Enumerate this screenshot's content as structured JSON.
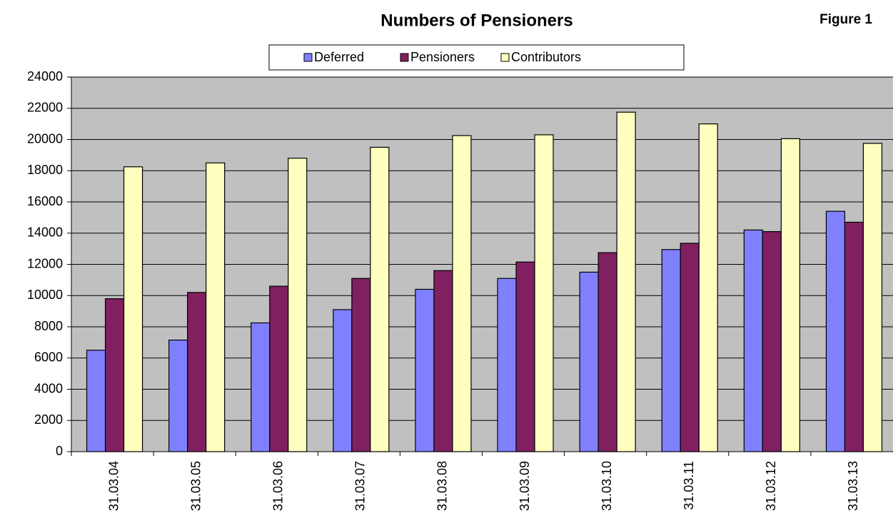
{
  "chart_data": {
    "type": "bar",
    "title": "Numbers of Pensioners",
    "figure_label": "Figure 1",
    "categories": [
      "31.03.04",
      "31.03.05",
      "31.03.06",
      "31.03.07",
      "31.03.08",
      "31.03.09",
      "31.03.10",
      "31.03.11",
      "31.03.12",
      "31.03.13"
    ],
    "series": [
      {
        "name": "Deferred",
        "color": "#8080ff",
        "values": [
          6500,
          7150,
          8250,
          9100,
          10400,
          11100,
          11500,
          12950,
          14200,
          15400
        ]
      },
      {
        "name": "Pensioners",
        "color": "#802060",
        "values": [
          9800,
          10200,
          10600,
          11100,
          11600,
          12150,
          12750,
          13350,
          14100,
          14700
        ]
      },
      {
        "name": "Contributors",
        "color": "#ffffc0",
        "values": [
          18250,
          18500,
          18800,
          19500,
          20250,
          20300,
          21750,
          21000,
          20050,
          19750
        ]
      }
    ],
    "ylim": [
      0,
      24000
    ],
    "yticks": [
      0,
      2000,
      4000,
      6000,
      8000,
      10000,
      12000,
      14000,
      16000,
      18000,
      20000,
      22000,
      24000
    ],
    "grid": true,
    "legend": "top"
  }
}
